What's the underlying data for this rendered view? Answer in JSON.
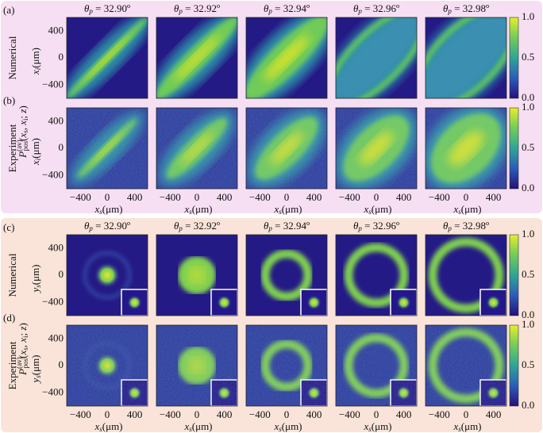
{
  "sections": [
    {
      "titles": [
        "32.90º",
        "32.92º",
        "32.94º",
        "32.96º",
        "32.98º"
      ],
      "title_symbol": {
        "var": "θ",
        "sub": "p",
        "eq": " = "
      },
      "rows": [
        {
          "label": "(a)",
          "name": "Numerical"
        },
        {
          "label": "(b)",
          "name": "Experiment"
        }
      ],
      "ylabel": {
        "var": "x",
        "sub": "i",
        "unit": "(μm)"
      },
      "yticks": [
        "400",
        "0",
        "−400"
      ],
      "xticks": [
        "−400",
        "0",
        "400"
      ],
      "xlabel": {
        "var": "x",
        "sub": "s",
        "unit": "(μm)"
      },
      "colorbar_ticks": [
        "1.0",
        "0.5",
        "0.0"
      ],
      "shared_label": [
        {
          "t": "P",
          "s": "i"
        },
        {
          "t": "(av)",
          "s": "sup"
        },
        {
          "t": "pos",
          "s": "sub"
        },
        {
          "t": "(",
          "s": "n"
        },
        {
          "t": "x",
          "s": "i"
        },
        {
          "t": "s",
          "s": "sub"
        },
        {
          "t": ", ",
          "s": "n"
        },
        {
          "t": "x",
          "s": "i"
        },
        {
          "t": "i",
          "s": "sub"
        },
        {
          "t": "; ",
          "s": "n"
        },
        {
          "t": "z",
          "s": "i"
        },
        {
          "t": ")",
          "s": "n"
        }
      ]
    },
    {
      "titles": [
        "32.90º",
        "32.92º",
        "32.94º",
        "32.96º",
        "32.98º"
      ],
      "title_symbol": {
        "var": "θ",
        "sub": "p",
        "eq": " = "
      },
      "rows": [
        {
          "label": "(c)",
          "name": "Numerical"
        },
        {
          "label": "(d)",
          "name": "Experiment"
        }
      ],
      "ylabel": {
        "var": "y",
        "sub": "s",
        "unit": "(μm)"
      },
      "yticks": [
        "400",
        "0",
        "−400"
      ],
      "xticks": [
        "−400",
        "0",
        "400"
      ],
      "xlabel": {
        "var": "x",
        "sub": "s",
        "unit": "(μm)"
      },
      "colorbar_ticks": [
        "1.0",
        "0.5",
        "0.0"
      ],
      "shared_label": [
        {
          "t": "P",
          "s": "i"
        },
        {
          "t": "(av)",
          "s": "sup"
        },
        {
          "t": "pos",
          "s": "sub"
        },
        {
          "t": "(",
          "s": "n"
        },
        {
          "t": "x",
          "s": "i"
        },
        {
          "t": "s",
          "s": "sub"
        },
        {
          "t": ", ",
          "s": "n"
        },
        {
          "t": "x",
          "s": "i"
        },
        {
          "t": "i",
          "s": "sub"
        },
        {
          "t": "; ",
          "s": "n"
        },
        {
          "t": "z",
          "s": "i"
        },
        {
          "t": ")",
          "s": "n"
        }
      ]
    }
  ]
}
